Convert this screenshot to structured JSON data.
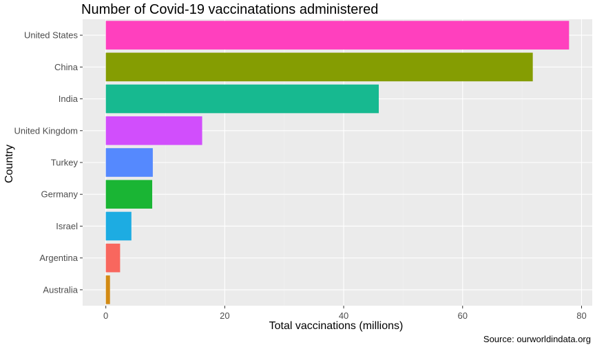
{
  "chart_data": {
    "type": "bar",
    "orientation": "horizontal",
    "title": "Number of Covid-19 vaccinatations administered",
    "xlabel": "Total vaccinations (millions)",
    "ylabel": "Country",
    "caption": "Source: ourworldindata.org",
    "categories": [
      "United States",
      "China",
      "India",
      "United Kingdom",
      "Turkey",
      "Germany",
      "Israel",
      "Argentina",
      "Australia"
    ],
    "values": [
      77.9,
      71.8,
      45.9,
      16.2,
      7.9,
      7.8,
      4.3,
      2.4,
      0.7
    ],
    "colors": [
      "#FF40BE",
      "#859D02",
      "#17B990",
      "#D14EFC",
      "#5589FE",
      "#1AB534",
      "#1DACE2",
      "#F8675E",
      "#D28A14"
    ],
    "xlim": [
      -3.9,
      81.8
    ],
    "xticks": [
      0,
      20,
      40,
      60,
      80
    ],
    "xtick_labels": [
      "0",
      "20",
      "40",
      "60",
      "80"
    ],
    "grid": true,
    "legend": "none"
  }
}
